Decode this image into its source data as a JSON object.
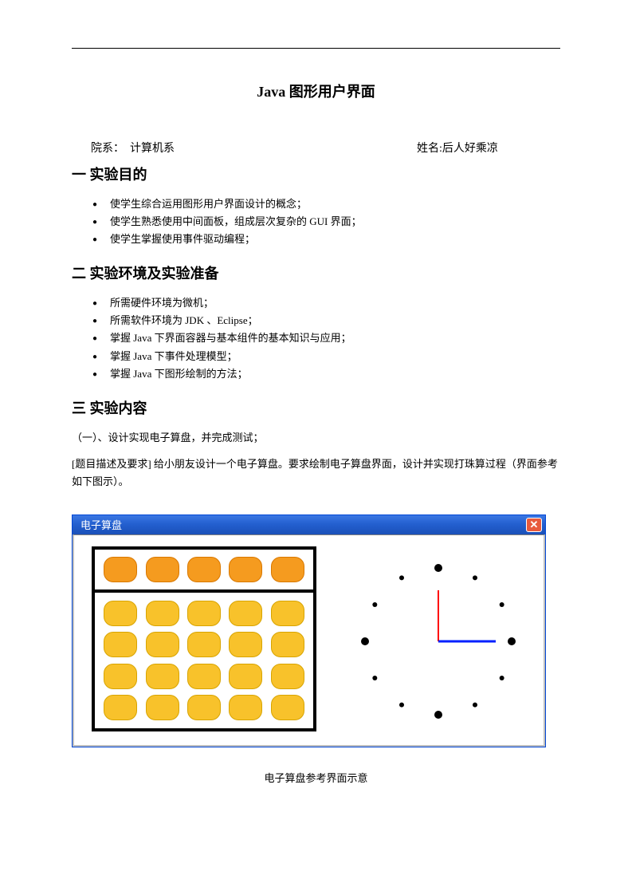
{
  "title": "Java 图形用户界面",
  "info": {
    "dept_label": "院系：",
    "dept_value": "计算机系",
    "name_label": "姓名:",
    "name_value": "后人好乘凉"
  },
  "sections": {
    "s1": {
      "heading": "一 实验目的",
      "items": [
        "使学生综合运用图形用户界面设计的概念；",
        "使学生熟悉使用中间面板，组成层次复杂的 GUI 界面；",
        "使学生掌握使用事件驱动编程；"
      ]
    },
    "s2": {
      "heading": "二 实验环境及实验准备",
      "items": [
        "所需硬件环境为微机；",
        "所需软件环境为 JDK 、Eclipse；",
        "掌握 Java 下界面容器与基本组件的基本知识与应用；",
        "掌握 Java 下事件处理模型；",
        "掌握 Java 下图形绘制的方法；"
      ]
    },
    "s3": {
      "heading": "三 实验内容",
      "sub": "（一）、设计实现电子算盘，并完成测试；",
      "para": "[题目描述及要求]  给小朋友设计一个电子算盘。要求绘制电子算盘界面，设计并实现打珠算过程（界面参考如下图示）。"
    }
  },
  "window": {
    "title": "电子算盘",
    "close_glyph": "✕",
    "titlebar_gradient": [
      "#3b77e3",
      "#1a50b8"
    ],
    "close_bg": "#e85a3d",
    "border_color": "#0046d5",
    "client_bg": "#ffffff"
  },
  "abacus": {
    "border_color": "#000000",
    "top_bead": {
      "fill": "#f59b1f",
      "stroke": "#d97800",
      "count": 5
    },
    "bottom_bead": {
      "fill": "#f8c22b",
      "stroke": "#d8a400",
      "rows": 4,
      "cols": 5
    }
  },
  "clock": {
    "radius": 92,
    "dot_color": "#000000",
    "big_dots": [
      0,
      90,
      180,
      270
    ],
    "big_dot_r": 5,
    "small_dot_r": 3,
    "hands": [
      {
        "name": "second",
        "angle_deg": 0,
        "length": 64,
        "width": 2,
        "color": "#ff0000"
      },
      {
        "name": "minute",
        "angle_deg": 90,
        "length": 72,
        "width": 3,
        "color": "#0020ff"
      }
    ]
  },
  "caption": "电子算盘参考界面示意"
}
